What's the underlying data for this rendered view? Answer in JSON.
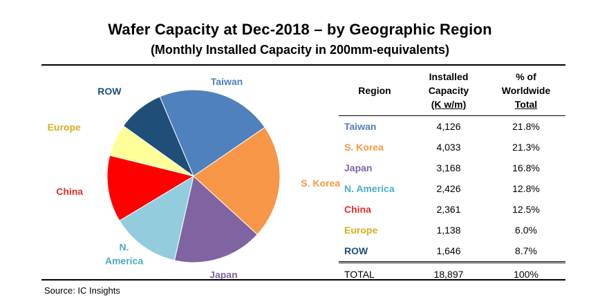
{
  "title": "Wafer Capacity at Dec-2018 – by Geographic Region",
  "subtitle": "(Monthly Installed Capacity in 200mm-equivalents)",
  "source": "Source:  IC Insights",
  "table": {
    "headers": {
      "region": "Region",
      "capacity_l1": "Installed",
      "capacity_l2": "Capacity",
      "capacity_l3": "(K w/m)",
      "pct_l1": "% of",
      "pct_l2": "Worldwide",
      "pct_l3": "Total"
    },
    "rows": [
      {
        "region": "Taiwan",
        "capacity": "4,126",
        "pct": "21.8%"
      },
      {
        "region": "S. Korea",
        "capacity": "4,033",
        "pct": "21.3%"
      },
      {
        "region": "Japan",
        "capacity": "3,168",
        "pct": "16.8%"
      },
      {
        "region": "N. America",
        "capacity": "2,426",
        "pct": "12.8%"
      },
      {
        "region": "China",
        "capacity": "2,361",
        "pct": "12.5%"
      },
      {
        "region": "Europe",
        "capacity": "1,138",
        "pct": "6.0%"
      },
      {
        "region": "ROW",
        "capacity": "1,646",
        "pct": "8.7%"
      }
    ],
    "total": {
      "label": "TOTAL",
      "capacity": "18,897",
      "pct": "100%"
    }
  },
  "chart_data": {
    "type": "pie",
    "title": "Wafer Capacity at Dec-2018 – by Geographic Region",
    "subtitle": "(Monthly Installed Capacity in 200mm-equivalents)",
    "unit": "K wafers/month",
    "slices": [
      {
        "label": "Taiwan",
        "value": 4126,
        "percent": 21.8,
        "color": "#4f81bd",
        "label_color": "#4f81bd"
      },
      {
        "label": "S. Korea",
        "value": 4033,
        "percent": 21.3,
        "color": "#f79646",
        "label_color": "#f79646"
      },
      {
        "label": "Japan",
        "value": 3168,
        "percent": 16.8,
        "color": "#8064a2",
        "label_color": "#8064a2"
      },
      {
        "label": "N. America",
        "value": 2426,
        "percent": 12.8,
        "color": "#93cddd",
        "label_color": "#4bacc6"
      },
      {
        "label": "China",
        "value": 2361,
        "percent": 12.5,
        "color": "#ff0000",
        "label_color": "#e32d2d"
      },
      {
        "label": "Europe",
        "value": 1138,
        "percent": 6.0,
        "color": "#ffff99",
        "label_color": "#d4b020"
      },
      {
        "label": "ROW",
        "value": 1646,
        "percent": 8.7,
        "color": "#1f4e79",
        "label_color": "#1f4e79"
      }
    ],
    "pie_labels": {
      "Taiwan": [
        "Taiwan"
      ],
      "S. Korea": [
        "S. Korea"
      ],
      "Japan": [
        "Japan"
      ],
      "N. America": [
        "N.",
        "America"
      ],
      "China": [
        "China"
      ],
      "Europe": [
        "Europe"
      ],
      "ROW": [
        "ROW"
      ]
    }
  }
}
